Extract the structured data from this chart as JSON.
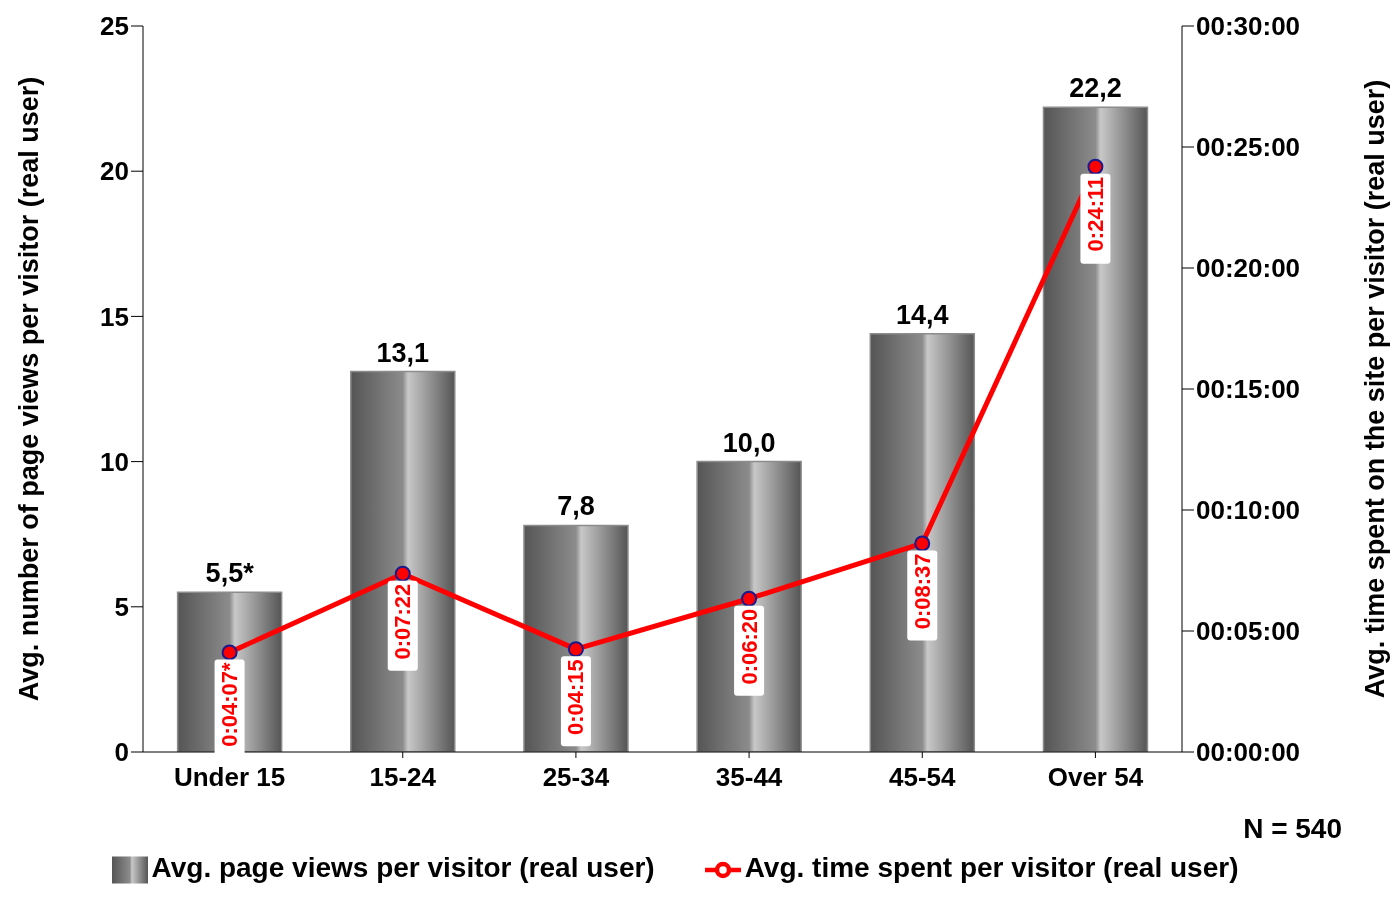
{
  "chart_data": {
    "type": "bar",
    "categories": [
      "Under 15",
      "15-24",
      "25-34",
      "35-44",
      "45-54",
      "Over 54"
    ],
    "ylabel": "Avg. number of page views per visitor (real user)",
    "y2label": "Avg. time spent on the site per visitor (real user)",
    "ylim": [
      0,
      25
    ],
    "yticks": [
      0,
      5,
      10,
      15,
      20,
      25
    ],
    "y2lim": [
      0,
      30
    ],
    "y2ticks": [
      {
        "value": 0,
        "label": "00:00:00"
      },
      {
        "value": 5,
        "label": "00:05:00"
      },
      {
        "value": 10,
        "label": "00:10:00"
      },
      {
        "value": 15,
        "label": "00:15:00"
      },
      {
        "value": 20,
        "label": "00:20:00"
      },
      {
        "value": 25,
        "label": "00:25:00"
      },
      {
        "value": 30,
        "label": "00:30:00"
      }
    ],
    "series": [
      {
        "name": "Avg. page views per visitor (real user)",
        "color": "#8c8c8c",
        "values": [
          5.5,
          13.1,
          7.8,
          10.0,
          14.4,
          22.2
        ],
        "value_labels": [
          "5,5*",
          "13,1",
          "7,8",
          "10,0",
          "14,4",
          "22,2"
        ]
      },
      {
        "name": "Avg. time spent per visitor (real user)",
        "type": "line",
        "axis": "y2",
        "color": "#ff0000",
        "values": [
          4.1167,
          7.3667,
          4.25,
          6.3333,
          8.6167,
          24.1833
        ],
        "value_labels": [
          "0:04:07*",
          "0:07:22",
          "0:04:15",
          "0:06:20",
          "0:08:37",
          "0:24:11"
        ]
      }
    ],
    "marker": "circle",
    "legend": "bottom",
    "grid": false,
    "annotations": [
      "N = 540"
    ]
  }
}
